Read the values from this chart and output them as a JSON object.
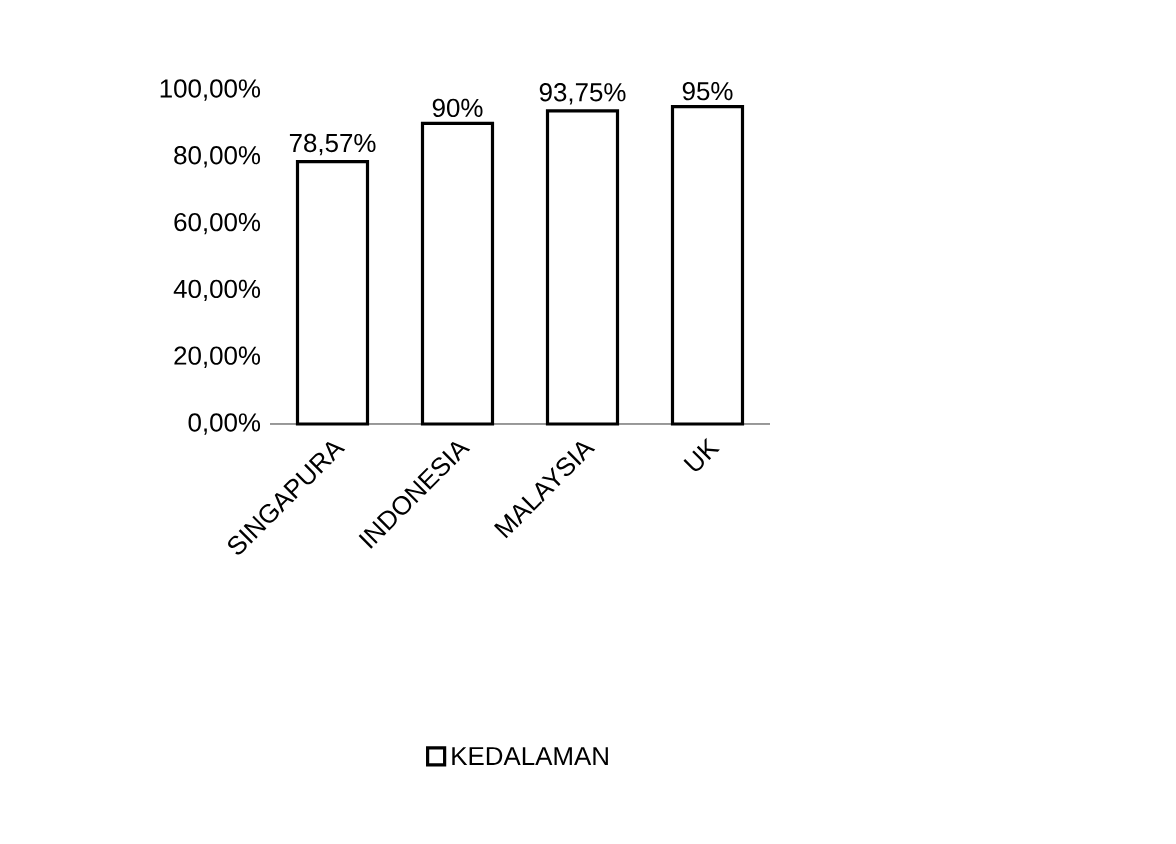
{
  "chart_data": {
    "type": "bar",
    "categories": [
      "SINGAPURA",
      "INDONESIA",
      "MALAYSIA",
      "UK"
    ],
    "series": [
      {
        "name": "KEDALAMAN",
        "color": "#ffffff",
        "values": [
          78.57,
          90,
          93.75,
          95
        ],
        "value_labels": [
          "78,57%",
          "90%",
          "93,75%",
          "95%"
        ]
      }
    ],
    "ylim": [
      0,
      100
    ],
    "yticks": [
      {
        "value": 0,
        "label": "0,00%"
      },
      {
        "value": 20,
        "label": "20,00%"
      },
      {
        "value": 40,
        "label": "40,00%"
      },
      {
        "value": 60,
        "label": "60,00%"
      },
      {
        "value": 80,
        "label": "80,00%"
      },
      {
        "value": 100,
        "label": "100,00%"
      }
    ],
    "grid": false,
    "legend": "bottom"
  }
}
